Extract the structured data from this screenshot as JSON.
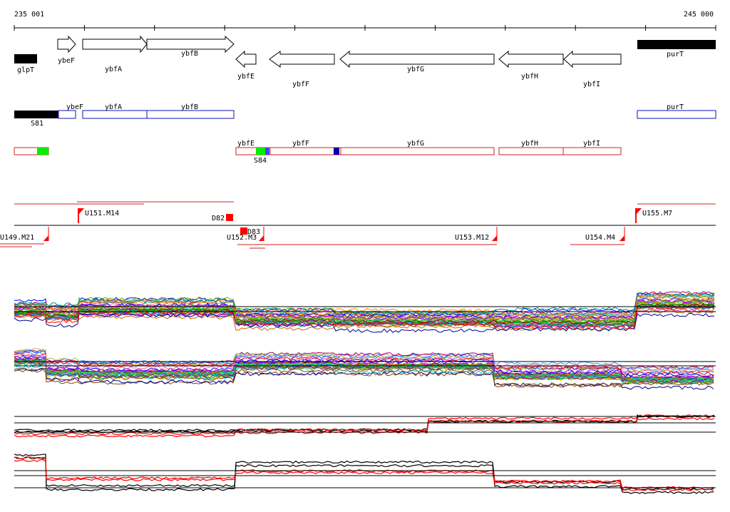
{
  "ruler": {
    "start_label": "235 001",
    "end_label": "245 000"
  },
  "genes_top": [
    {
      "name": "glpT",
      "strand": "fill"
    },
    {
      "name": "ybeF",
      "strand": "+"
    },
    {
      "name": "ybfA",
      "strand": "+"
    },
    {
      "name": "ybfB",
      "strand": "+"
    },
    {
      "name": "ybfE",
      "strand": "-"
    },
    {
      "name": "ybfF",
      "strand": "-"
    },
    {
      "name": "ybfG",
      "strand": "-"
    },
    {
      "name": "ybfH",
      "strand": "-"
    },
    {
      "name": "ybfI",
      "strand": "-"
    },
    {
      "name": "purT",
      "strand": "fill"
    }
  ],
  "plus_track": {
    "labels": [
      "ybeF",
      "ybfA",
      "ybfB",
      "purT"
    ],
    "tag": "S81"
  },
  "minus_track": {
    "labels": [
      "ybfE",
      "ybfF",
      "ybfG",
      "ybfH",
      "ybfI"
    ],
    "tag": "S84"
  },
  "segments": {
    "above": [
      "U151.M14",
      "D82",
      "U155.M7"
    ],
    "below": [
      "U149.M21",
      "U152.M3",
      "D83",
      "U153.M12",
      "U154.M4"
    ]
  },
  "colors": {
    "plus_outline": "#1010c0",
    "minus_outline": "#d02020",
    "green_block": "#00ee00",
    "blue_block": "#0000aa",
    "red_marker": "#ff0000"
  }
}
